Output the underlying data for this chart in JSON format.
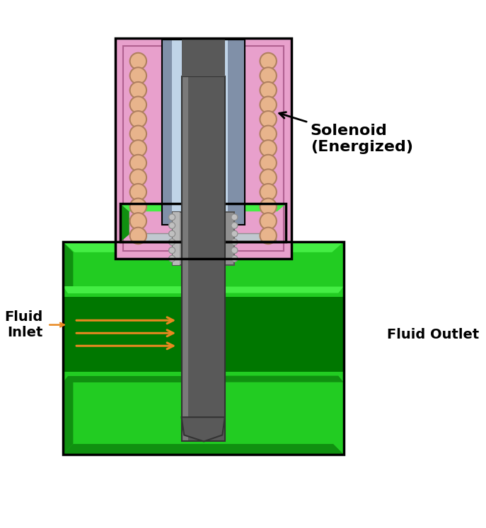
{
  "solenoid_label": "Solenoid\n(Energized)",
  "fluid_inlet_label": "Fluid\nInlet",
  "fluid_outlet_label": "Fluid Outlet",
  "colors": {
    "bg": "#ffffff",
    "pink": "#e8a0cc",
    "pink_dark": "#b06090",
    "green": "#22cc22",
    "green_dark": "#109010",
    "green_mid": "#44ee44",
    "green_shadow": "#008800",
    "plunger": "#595959",
    "plunger_light": "#7a7a7a",
    "silver": "#c0d4e8",
    "silver_light": "#e0eef8",
    "silver_dark": "#8090a8",
    "coil_fill": "#e8b48c",
    "coil_edge": "#b08060",
    "small_dot": "#c0c0c0",
    "small_dot_edge": "#909090",
    "gray_sleeve": "#909090",
    "sleeve_light": "#b8b8b8",
    "orange": "#e88820",
    "black": "#000000",
    "white": "#ffffff",
    "dark_passage": "#007700",
    "base_plate": "#c0c8d0"
  }
}
